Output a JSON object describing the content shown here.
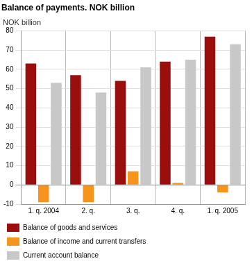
{
  "chart_data": {
    "type": "bar",
    "title": "Balance of payments. NOK billion",
    "y_label": "NOK billion",
    "categories": [
      "1. q. 2004",
      "2. q.",
      "3. q.",
      "4. q.",
      "1. q. 2005"
    ],
    "series": [
      {
        "name": "Balance of goods and services",
        "color": "#9b0e0e",
        "values": [
          63,
          57,
          54,
          64,
          77
        ]
      },
      {
        "name": "Balance of income and current transfers",
        "color": "#f7941d",
        "values": [
          -9,
          -9,
          7,
          1,
          -4
        ]
      },
      {
        "name": "Current account balance",
        "color": "#c8c8c8",
        "values": [
          53,
          48,
          61,
          65,
          73
        ]
      }
    ],
    "ylim": [
      -10,
      80
    ],
    "yticks": [
      -10,
      0,
      10,
      20,
      30,
      40,
      50,
      60,
      70,
      80
    ],
    "grid": true,
    "legend": "bottom"
  }
}
